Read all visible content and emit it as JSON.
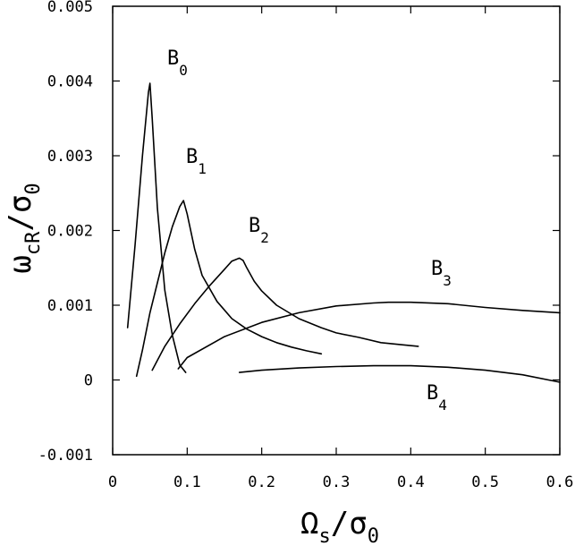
{
  "chart_data": {
    "type": "line",
    "xlim": [
      0,
      0.6
    ],
    "ylim": [
      -0.001,
      0.005
    ],
    "x_ticks": [
      "0",
      "0.1",
      "0.2",
      "0.3",
      "0.4",
      "0.5",
      "0.6"
    ],
    "y_ticks": [
      "-0.001",
      "0",
      "0.001",
      "0.002",
      "0.003",
      "0.004",
      "0.005"
    ],
    "xlabel": {
      "main": "Ω",
      "sub": "s",
      "sep": "/σ",
      "sub2": "0"
    },
    "ylabel": {
      "main": "ω",
      "sub": "cR",
      "sep": "/σ",
      "sub2": "0"
    },
    "grid": false,
    "series": [
      {
        "name": "B",
        "sub": "0",
        "points": [
          [
            0.02,
            0.0007
          ],
          [
            0.03,
            0.0018
          ],
          [
            0.04,
            0.003
          ],
          [
            0.048,
            0.00385
          ],
          [
            0.05,
            0.00397
          ],
          [
            0.053,
            0.0035
          ],
          [
            0.06,
            0.0023
          ],
          [
            0.07,
            0.0012
          ],
          [
            0.08,
            0.0006
          ],
          [
            0.09,
            0.0002
          ],
          [
            0.098,
            0.0001
          ]
        ]
      },
      {
        "name": "B",
        "sub": "1",
        "points": [
          [
            0.032,
            5e-05
          ],
          [
            0.04,
            0.0004
          ],
          [
            0.05,
            0.0009
          ],
          [
            0.06,
            0.0013
          ],
          [
            0.07,
            0.0017
          ],
          [
            0.08,
            0.00205
          ],
          [
            0.09,
            0.00232
          ],
          [
            0.095,
            0.0024
          ],
          [
            0.1,
            0.00222
          ],
          [
            0.11,
            0.00175
          ],
          [
            0.12,
            0.0014
          ],
          [
            0.14,
            0.00105
          ],
          [
            0.16,
            0.00082
          ],
          [
            0.18,
            0.00068
          ],
          [
            0.2,
            0.00058
          ],
          [
            0.22,
            0.0005
          ],
          [
            0.24,
            0.00044
          ],
          [
            0.26,
            0.00039
          ],
          [
            0.28,
            0.00035
          ]
        ]
      },
      {
        "name": "B",
        "sub": "2",
        "points": [
          [
            0.053,
            0.00013
          ],
          [
            0.07,
            0.00045
          ],
          [
            0.09,
            0.00075
          ],
          [
            0.11,
            0.00102
          ],
          [
            0.13,
            0.00126
          ],
          [
            0.15,
            0.00148
          ],
          [
            0.16,
            0.00159
          ],
          [
            0.17,
            0.00163
          ],
          [
            0.175,
            0.0016
          ],
          [
            0.18,
            0.0015
          ],
          [
            0.19,
            0.00132
          ],
          [
            0.2,
            0.00119
          ],
          [
            0.22,
            0.001
          ],
          [
            0.25,
            0.00082
          ],
          [
            0.28,
            0.0007
          ],
          [
            0.3,
            0.00063
          ],
          [
            0.33,
            0.00057
          ],
          [
            0.36,
            0.0005
          ],
          [
            0.39,
            0.00047
          ],
          [
            0.41,
            0.00045
          ]
        ]
      },
      {
        "name": "B",
        "sub": "3",
        "points": [
          [
            0.088,
            0.00015
          ],
          [
            0.1,
            0.0003
          ],
          [
            0.15,
            0.00058
          ],
          [
            0.2,
            0.00077
          ],
          [
            0.25,
            0.0009
          ],
          [
            0.3,
            0.00099
          ],
          [
            0.35,
            0.00103
          ],
          [
            0.37,
            0.00104
          ],
          [
            0.4,
            0.00104
          ],
          [
            0.45,
            0.00102
          ],
          [
            0.5,
            0.00097
          ],
          [
            0.55,
            0.00093
          ],
          [
            0.6,
            0.0009
          ]
        ]
      },
      {
        "name": "B",
        "sub": "4",
        "points": [
          [
            0.17,
            0.0001
          ],
          [
            0.2,
            0.00013
          ],
          [
            0.25,
            0.00016
          ],
          [
            0.3,
            0.00018
          ],
          [
            0.35,
            0.00019
          ],
          [
            0.4,
            0.00019
          ],
          [
            0.45,
            0.00017
          ],
          [
            0.5,
            0.00013
          ],
          [
            0.55,
            7e-05
          ],
          [
            0.6,
            -3e-05
          ]
        ]
      }
    ]
  }
}
